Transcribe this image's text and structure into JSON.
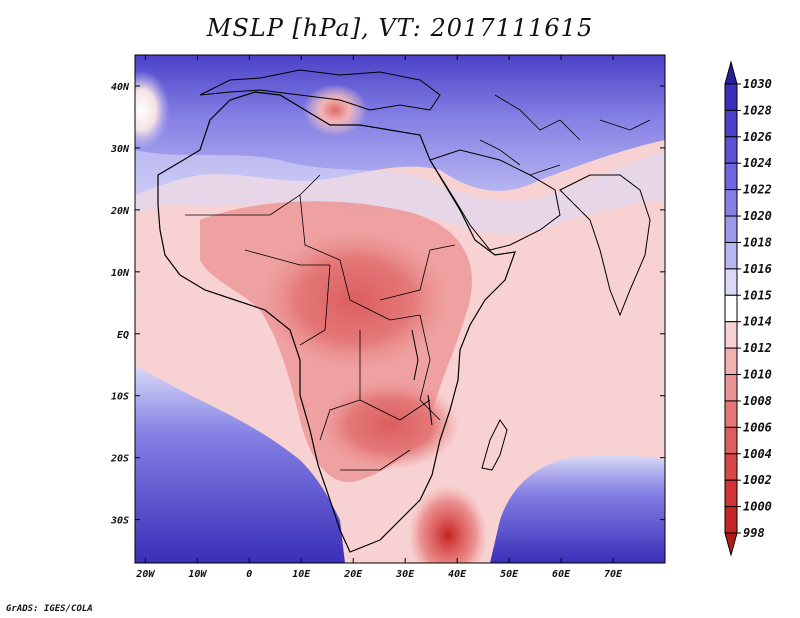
{
  "title": "MSLP [hPa], VT: 2017111615",
  "credit": "GrADS: IGES/COLA",
  "map": {
    "lon_labels": [
      "20W",
      "10W",
      "0",
      "10E",
      "20E",
      "30E",
      "40E",
      "50E",
      "60E",
      "70E"
    ],
    "lat_labels": [
      "40N",
      "30N",
      "20N",
      "10N",
      "EQ",
      "10S",
      "20S",
      "30S"
    ],
    "lon_values": [
      -20,
      -10,
      0,
      10,
      20,
      30,
      40,
      50,
      60,
      70
    ],
    "lat_values": [
      40,
      30,
      20,
      10,
      0,
      -10,
      -20,
      -30
    ],
    "lon_range": [
      -22,
      80
    ],
    "lat_range": [
      -37,
      45
    ]
  },
  "colorbar": {
    "levels": [
      "1030",
      "1028",
      "1026",
      "1024",
      "1022",
      "1020",
      "1018",
      "1016",
      "1015",
      "1014",
      "1012",
      "1010",
      "1008",
      "1006",
      "1004",
      "1002",
      "1000",
      "998"
    ],
    "colors": [
      "#2a1e9c",
      "#3a2fb8",
      "#4b41c8",
      "#5b52d3",
      "#6d66dc",
      "#8580e4",
      "#9d99eb",
      "#b9b7f2",
      "#d9d9f7",
      "#ffffff",
      "#f8d2d2",
      "#f2b0b0",
      "#ec9393",
      "#e47878",
      "#dd5e5e",
      "#d84747",
      "#cf3535",
      "#c42525",
      "#b51a1a"
    ]
  }
}
